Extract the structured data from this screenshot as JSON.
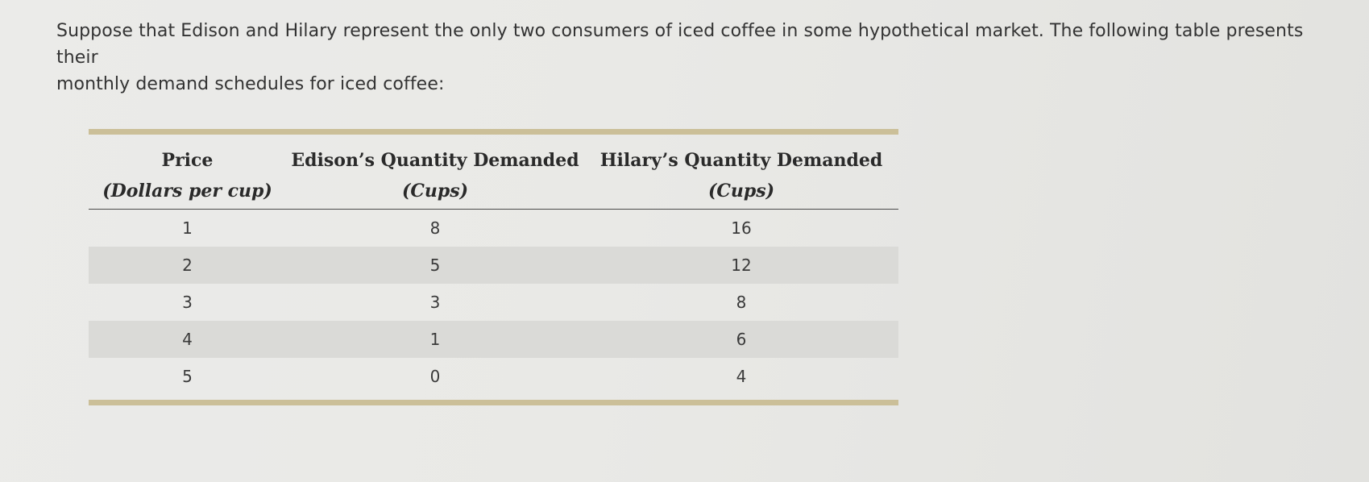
{
  "intro": {
    "line1": "Suppose that Edison and Hilary represent the only two consumers of iced coffee in some hypothetical market. The following table presents their",
    "line2": "monthly demand schedules for iced coffee:"
  },
  "table": {
    "headers": [
      {
        "title": "Price",
        "unit": "(Dollars per cup)"
      },
      {
        "title": "Edison’s Quantity Demanded",
        "unit": "(Cups)"
      },
      {
        "title": "Hilary’s Quantity Demanded",
        "unit": "(Cups)"
      }
    ],
    "rows": [
      [
        "1",
        "8",
        "16"
      ],
      [
        "2",
        "5",
        "12"
      ],
      [
        "3",
        "3",
        "8"
      ],
      [
        "4",
        "1",
        "6"
      ],
      [
        "5",
        "0",
        "4"
      ]
    ]
  }
}
